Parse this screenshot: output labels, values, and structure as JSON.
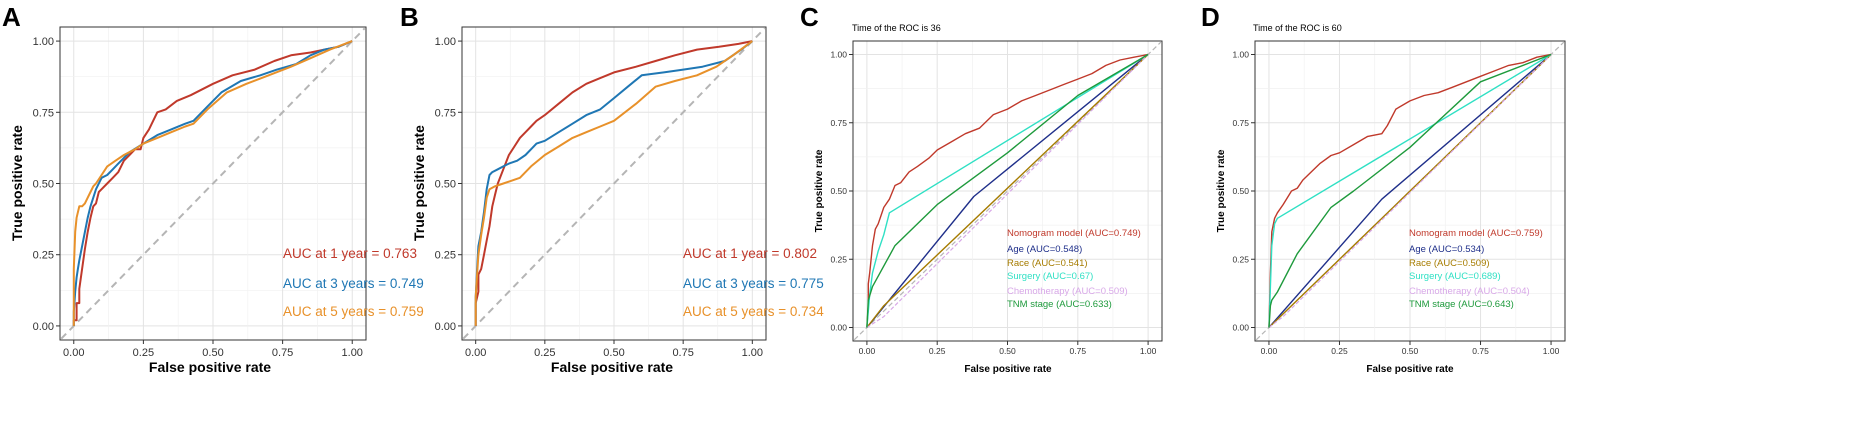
{
  "chart_data": [
    {
      "panel": "A",
      "type": "line",
      "xlabel": "False positive rate",
      "ylabel": "True positive rate",
      "xlim": [
        0,
        1
      ],
      "ylim": [
        0,
        1
      ],
      "xticks": [
        "0.00",
        "0.25",
        "0.50",
        "0.75",
        "1.00"
      ],
      "yticks": [
        "0.00",
        "0.25",
        "0.50",
        "0.75",
        "1.00"
      ],
      "grid": true,
      "series": [
        {
          "name": "AUC at 1 year = 0.763",
          "color": "#c0392b",
          "x": [
            0,
            0,
            0.01,
            0.01,
            0.02,
            0.02,
            0.03,
            0.04,
            0.05,
            0.06,
            0.07,
            0.08,
            0.09,
            0.1,
            0.12,
            0.14,
            0.16,
            0.18,
            0.2,
            0.22,
            0.24,
            0.25,
            0.27,
            0.3,
            0.33,
            0.37,
            0.42,
            0.5,
            0.57,
            0.65,
            0.72,
            0.78,
            0.85,
            0.9,
            0.95,
            1.0
          ],
          "y": [
            0,
            0.02,
            0.02,
            0.08,
            0.08,
            0.13,
            0.2,
            0.27,
            0.33,
            0.38,
            0.42,
            0.43,
            0.47,
            0.48,
            0.5,
            0.52,
            0.54,
            0.58,
            0.6,
            0.62,
            0.62,
            0.66,
            0.69,
            0.75,
            0.76,
            0.79,
            0.81,
            0.85,
            0.88,
            0.9,
            0.93,
            0.95,
            0.96,
            0.97,
            0.98,
            1.0
          ]
        },
        {
          "name": "AUC at 3 years = 0.749",
          "color": "#1f77b4",
          "x": [
            0,
            0,
            0.005,
            0.01,
            0.015,
            0.02,
            0.03,
            0.04,
            0.05,
            0.06,
            0.08,
            0.1,
            0.12,
            0.14,
            0.16,
            0.18,
            0.2,
            0.25,
            0.3,
            0.35,
            0.4,
            0.43,
            0.48,
            0.53,
            0.6,
            0.67,
            0.73,
            0.8,
            0.85,
            0.9,
            0.95,
            1.0
          ],
          "y": [
            0,
            0.05,
            0.12,
            0.17,
            0.2,
            0.23,
            0.28,
            0.33,
            0.38,
            0.42,
            0.48,
            0.52,
            0.53,
            0.55,
            0.57,
            0.59,
            0.61,
            0.64,
            0.67,
            0.69,
            0.71,
            0.72,
            0.77,
            0.82,
            0.86,
            0.88,
            0.9,
            0.92,
            0.95,
            0.97,
            0.98,
            1.0
          ]
        },
        {
          "name": "AUC at 5 years = 0.759",
          "color": "#e8912a",
          "x": [
            0,
            0,
            0.005,
            0.01,
            0.02,
            0.03,
            0.04,
            0.05,
            0.06,
            0.07,
            0.08,
            0.1,
            0.12,
            0.15,
            0.18,
            0.22,
            0.25,
            0.3,
            0.35,
            0.4,
            0.43,
            0.48,
            0.55,
            0.62,
            0.7,
            0.78,
            0.85,
            0.92,
            1.0
          ],
          "y": [
            0,
            0.2,
            0.33,
            0.38,
            0.42,
            0.42,
            0.43,
            0.45,
            0.47,
            0.49,
            0.5,
            0.53,
            0.56,
            0.58,
            0.6,
            0.62,
            0.64,
            0.66,
            0.68,
            0.7,
            0.71,
            0.76,
            0.82,
            0.85,
            0.88,
            0.91,
            0.94,
            0.97,
            1.0
          ]
        }
      ],
      "annotations": [
        {
          "text": "AUC at 1 year = 0.763",
          "color": "#c0392b"
        },
        {
          "text": "AUC at 3 years = 0.749",
          "color": "#1f77b4"
        },
        {
          "text": "AUC at 5 years = 0.759",
          "color": "#e8912a"
        }
      ]
    },
    {
      "panel": "B",
      "type": "line",
      "xlabel": "False positive rate",
      "ylabel": "True positive rate",
      "xlim": [
        0,
        1
      ],
      "ylim": [
        0,
        1
      ],
      "xticks": [
        "0.00",
        "0.25",
        "0.50",
        "0.75",
        "1.00"
      ],
      "yticks": [
        "0.00",
        "0.25",
        "0.50",
        "0.75",
        "1.00"
      ],
      "grid": true,
      "series": [
        {
          "name": "AUC at 1 year = 0.802",
          "color": "#c0392b",
          "x": [
            0,
            0,
            0.01,
            0.01,
            0.02,
            0.03,
            0.04,
            0.05,
            0.06,
            0.07,
            0.08,
            0.1,
            0.12,
            0.14,
            0.16,
            0.18,
            0.2,
            0.22,
            0.25,
            0.3,
            0.35,
            0.4,
            0.45,
            0.5,
            0.58,
            0.65,
            0.72,
            0.8,
            0.88,
            0.95,
            1.0
          ],
          "y": [
            0,
            0.08,
            0.12,
            0.18,
            0.2,
            0.25,
            0.3,
            0.35,
            0.42,
            0.46,
            0.5,
            0.55,
            0.6,
            0.63,
            0.66,
            0.68,
            0.7,
            0.72,
            0.74,
            0.78,
            0.82,
            0.85,
            0.87,
            0.89,
            0.91,
            0.93,
            0.95,
            0.97,
            0.98,
            0.99,
            1.0
          ]
        },
        {
          "name": "AUC at 3 years = 0.775",
          "color": "#1f77b4",
          "x": [
            0,
            0,
            0.005,
            0.01,
            0.02,
            0.03,
            0.04,
            0.05,
            0.06,
            0.08,
            0.1,
            0.12,
            0.15,
            0.18,
            0.2,
            0.22,
            0.25,
            0.3,
            0.35,
            0.4,
            0.45,
            0.5,
            0.55,
            0.6,
            0.68,
            0.75,
            0.82,
            0.9,
            0.96,
            1.0
          ],
          "y": [
            0,
            0.1,
            0.2,
            0.28,
            0.33,
            0.4,
            0.48,
            0.53,
            0.54,
            0.55,
            0.56,
            0.57,
            0.58,
            0.6,
            0.62,
            0.64,
            0.65,
            0.68,
            0.71,
            0.74,
            0.76,
            0.8,
            0.84,
            0.88,
            0.89,
            0.9,
            0.91,
            0.93,
            0.97,
            1.0
          ]
        },
        {
          "name": "AUC at 5 years = 0.734",
          "color": "#e8912a",
          "x": [
            0,
            0,
            0.005,
            0.01,
            0.02,
            0.03,
            0.04,
            0.05,
            0.07,
            0.1,
            0.13,
            0.16,
            0.2,
            0.25,
            0.3,
            0.35,
            0.4,
            0.45,
            0.5,
            0.58,
            0.65,
            0.72,
            0.8,
            0.87,
            0.93,
            1.0
          ],
          "y": [
            0,
            0.1,
            0.18,
            0.25,
            0.32,
            0.38,
            0.45,
            0.48,
            0.49,
            0.5,
            0.51,
            0.52,
            0.56,
            0.6,
            0.63,
            0.66,
            0.68,
            0.7,
            0.72,
            0.78,
            0.84,
            0.86,
            0.88,
            0.91,
            0.95,
            1.0
          ]
        }
      ],
      "annotations": [
        {
          "text": "AUC at 1 year = 0.802",
          "color": "#c0392b"
        },
        {
          "text": "AUC at 3 years = 0.775",
          "color": "#1f77b4"
        },
        {
          "text": "AUC at 5 years = 0.734",
          "color": "#e8912a"
        }
      ]
    },
    {
      "panel": "C",
      "type": "line",
      "title": "Time of the ROC is  36",
      "xlabel": "False positive rate",
      "ylabel": "True positive rate",
      "xlim": [
        0,
        1
      ],
      "ylim": [
        0,
        1
      ],
      "xticks": [
        "0.00",
        "0.25",
        "0.50",
        "0.75",
        "1.00"
      ],
      "yticks": [
        "0.00",
        "0.25",
        "0.50",
        "0.75",
        "1.00"
      ],
      "grid": true,
      "series": [
        {
          "name": "Nomogram model (AUC=0.749)",
          "color": "#c0392b",
          "x": [
            0,
            0.005,
            0.005,
            0.01,
            0.02,
            0.03,
            0.04,
            0.05,
            0.06,
            0.08,
            0.1,
            0.12,
            0.15,
            0.18,
            0.22,
            0.25,
            0.3,
            0.35,
            0.4,
            0.45,
            0.5,
            0.55,
            0.6,
            0.65,
            0.7,
            0.75,
            0.8,
            0.85,
            0.9,
            0.95,
            1.0
          ],
          "y": [
            0,
            0.08,
            0.16,
            0.2,
            0.3,
            0.36,
            0.38,
            0.41,
            0.44,
            0.47,
            0.52,
            0.53,
            0.57,
            0.59,
            0.62,
            0.65,
            0.68,
            0.71,
            0.73,
            0.78,
            0.8,
            0.83,
            0.85,
            0.87,
            0.89,
            0.91,
            0.93,
            0.96,
            0.98,
            0.99,
            1.0
          ]
        },
        {
          "name": "Age (AUC=0.548)",
          "color": "#1f2f8a",
          "x": [
            0,
            0.38,
            1.0
          ],
          "y": [
            0,
            0.48,
            1.0
          ]
        },
        {
          "name": "Race (AUC=0.541)",
          "color": "#a67c00",
          "x": [
            0,
            0.06,
            1.0
          ],
          "y": [
            0,
            0.08,
            1.0
          ]
        },
        {
          "name": "Surgery (AUC=0.67)",
          "color": "#2fe0c4",
          "x": [
            0,
            0.01,
            0.02,
            0.04,
            0.06,
            0.08,
            1.0
          ],
          "y": [
            0,
            0.12,
            0.2,
            0.28,
            0.34,
            0.42,
            1.0
          ]
        },
        {
          "name": "Chemotherapy (AUC=0.509)",
          "color": "#d8a8e8",
          "x": [
            0,
            0.06,
            1.0
          ],
          "y": [
            0,
            0.04,
            1.0
          ]
        },
        {
          "name": "TNM stage (AUC=0.633)",
          "color": "#1e9a3c",
          "x": [
            0,
            0.005,
            0.02,
            0.1,
            0.25,
            0.5,
            0.75,
            1.0
          ],
          "y": [
            0,
            0.1,
            0.15,
            0.3,
            0.45,
            0.64,
            0.85,
            1.0
          ]
        }
      ],
      "legend": [
        {
          "text": "Nomogram model (AUC=0.749)",
          "color": "#c0392b"
        },
        {
          "text": "Age (AUC=0.548)",
          "color": "#1f2f8a"
        },
        {
          "text": "Race (AUC=0.541)",
          "color": "#a67c00"
        },
        {
          "text": "Surgery (AUC=0.67)",
          "color": "#2fe0c4"
        },
        {
          "text": "Chemotherapy (AUC=0.509)",
          "color": "#d8a8e8"
        },
        {
          "text": "TNM stage (AUC=0.633)",
          "color": "#1e9a3c"
        }
      ]
    },
    {
      "panel": "D",
      "type": "line",
      "title": "Time of the ROC is  60",
      "xlabel": "False positive rate",
      "ylabel": "True positive rate",
      "xlim": [
        0,
        1
      ],
      "ylim": [
        0,
        1
      ],
      "xticks": [
        "0.00",
        "0.25",
        "0.50",
        "0.75",
        "1.00"
      ],
      "yticks": [
        "0.00",
        "0.25",
        "0.50",
        "0.75",
        "1.00"
      ],
      "grid": true,
      "series": [
        {
          "name": "Nomogram model (AUC=0.759)",
          "color": "#c0392b",
          "x": [
            0,
            0.005,
            0.01,
            0.02,
            0.03,
            0.05,
            0.08,
            0.1,
            0.12,
            0.15,
            0.18,
            0.22,
            0.25,
            0.3,
            0.35,
            0.4,
            0.42,
            0.45,
            0.5,
            0.55,
            0.6,
            0.65,
            0.7,
            0.75,
            0.8,
            0.85,
            0.9,
            0.95,
            1.0
          ],
          "y": [
            0,
            0.2,
            0.35,
            0.4,
            0.42,
            0.45,
            0.5,
            0.51,
            0.54,
            0.57,
            0.6,
            0.63,
            0.64,
            0.67,
            0.7,
            0.71,
            0.74,
            0.8,
            0.83,
            0.85,
            0.86,
            0.88,
            0.9,
            0.92,
            0.94,
            0.96,
            0.97,
            0.99,
            1.0
          ]
        },
        {
          "name": "Age (AUC=0.534)",
          "color": "#1f2f8a",
          "x": [
            0,
            0.4,
            1.0
          ],
          "y": [
            0,
            0.47,
            1.0
          ]
        },
        {
          "name": "Race (AUC=0.509)",
          "color": "#a67c00",
          "x": [
            0,
            0.05,
            1.0
          ],
          "y": [
            0,
            0.05,
            1.0
          ]
        },
        {
          "name": "Surgery (AUC=0.689)",
          "color": "#2fe0c4",
          "x": [
            0,
            0.005,
            0.01,
            0.02,
            0.03,
            1.0
          ],
          "y": [
            0,
            0.15,
            0.3,
            0.38,
            0.4,
            1.0
          ]
        },
        {
          "name": "Chemotherapy (AUC=0.504)",
          "color": "#d8a8e8",
          "x": [
            0,
            0.05,
            1.0
          ],
          "y": [
            0,
            0.04,
            1.0
          ]
        },
        {
          "name": "TNM stage (AUC=0.643)",
          "color": "#1e9a3c",
          "x": [
            0,
            0.005,
            0.01,
            0.03,
            0.1,
            0.22,
            0.3,
            0.5,
            0.75,
            1.0
          ],
          "y": [
            0,
            0.08,
            0.1,
            0.13,
            0.27,
            0.44,
            0.5,
            0.66,
            0.9,
            1.0
          ]
        }
      ],
      "legend": [
        {
          "text": "Nomogram model (AUC=0.759)",
          "color": "#c0392b"
        },
        {
          "text": "Age (AUC=0.534)",
          "color": "#1f2f8a"
        },
        {
          "text": "Race (AUC=0.509)",
          "color": "#a67c00"
        },
        {
          "text": "Surgery (AUC=0.689)",
          "color": "#2fe0c4"
        },
        {
          "text": "Chemotherapy (AUC=0.504)",
          "color": "#d8a8e8"
        },
        {
          "text": "TNM stage (AUC=0.643)",
          "color": "#1e9a3c"
        }
      ]
    }
  ]
}
